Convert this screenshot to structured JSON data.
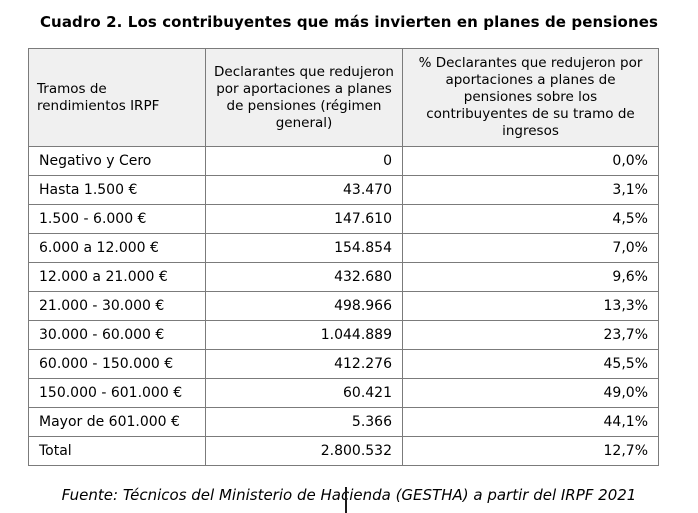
{
  "page": {
    "title": "Cuadro 2. Los contribuyentes que más invierten en planes de pensiones",
    "source": "Fuente: Técnicos del Ministerio de Hacienda (GESTHA) a partir del IRPF 2021"
  },
  "colors": {
    "header_background": "#f0f0f0",
    "border": "#7b7b7b",
    "text": "#000000",
    "background": "#ffffff"
  },
  "table": {
    "columns": [
      "Tramos de rendimientos IRPF",
      "Declarantes que redujeron por aportaciones a planes de pensiones (régimen general)",
      "% Declarantes que redujeron por aportaciones a planes de pensiones sobre los contribuyentes de su tramo de ingresos"
    ],
    "rows": [
      {
        "tramo": "Negativo y Cero",
        "declarantes": "0",
        "pct": "0,0%"
      },
      {
        "tramo": "Hasta 1.500 €",
        "declarantes": "43.470",
        "pct": "3,1%"
      },
      {
        "tramo": "1.500 - 6.000 €",
        "declarantes": "147.610",
        "pct": "4,5%"
      },
      {
        "tramo": "6.000 a 12.000 €",
        "declarantes": "154.854",
        "pct": "7,0%"
      },
      {
        "tramo": "12.000 a 21.000 €",
        "declarantes": "432.680",
        "pct": "9,6%"
      },
      {
        "tramo": "21.000 - 30.000 €",
        "declarantes": "498.966",
        "pct": "13,3%"
      },
      {
        "tramo": "30.000 - 60.000 €",
        "declarantes": "1.044.889",
        "pct": "23,7%"
      },
      {
        "tramo": "60.000 - 150.000 €",
        "declarantes": "412.276",
        "pct": "45,5%"
      },
      {
        "tramo": "150.000 - 601.000 €",
        "declarantes": "60.421",
        "pct": "49,0%"
      },
      {
        "tramo": "Mayor de 601.000 €",
        "declarantes": "5.366",
        "pct": "44,1%"
      },
      {
        "tramo": "Total",
        "declarantes": "2.800.532",
        "pct": "12,7%"
      }
    ]
  }
}
